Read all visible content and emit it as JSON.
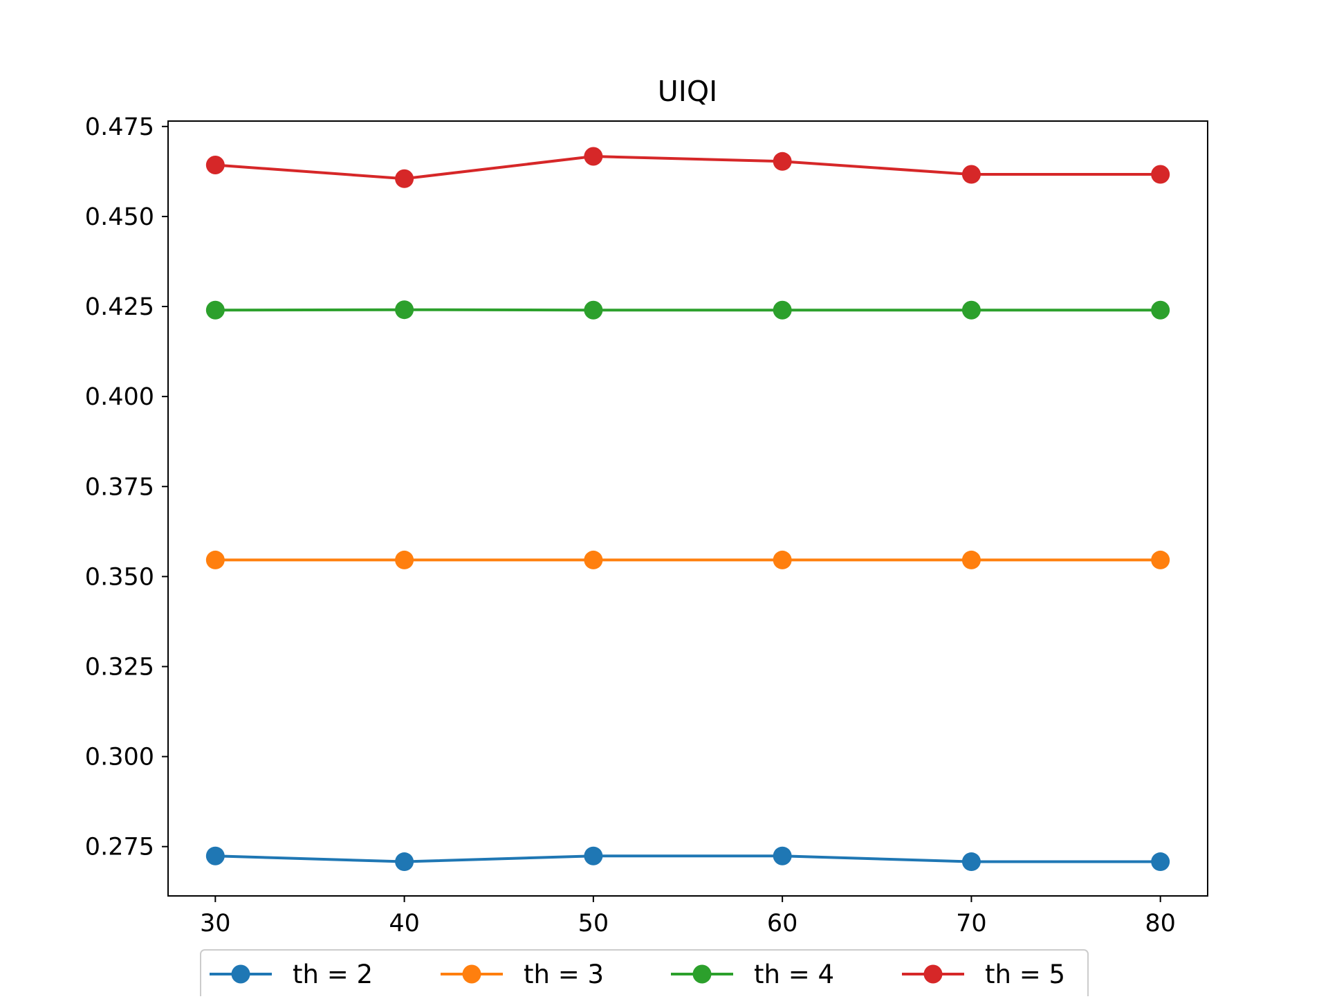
{
  "chart_data": {
    "type": "line",
    "title": "UIQI",
    "xlabel": "",
    "ylabel": "",
    "x": [
      30,
      40,
      50,
      60,
      70,
      80
    ],
    "xlim": [
      27.5,
      82.5
    ],
    "ylim": [
      0.2613,
      0.4765
    ],
    "x_ticks": [
      "30",
      "40",
      "50",
      "60",
      "70",
      "80"
    ],
    "y_ticks": [
      "0.275",
      "0.300",
      "0.325",
      "0.350",
      "0.375",
      "0.400",
      "0.425",
      "0.450",
      "0.475"
    ],
    "grid": false,
    "legend_position": "bottom-center, below plot",
    "series": [
      {
        "name": "th = 2",
        "color": "#1f77b4",
        "values": [
          0.2724,
          0.2708,
          0.2724,
          0.2724,
          0.2708,
          0.2708
        ]
      },
      {
        "name": "th = 3",
        "color": "#ff7f0e",
        "values": [
          0.3546,
          0.3546,
          0.3546,
          0.3546,
          0.3546,
          0.3546
        ]
      },
      {
        "name": "th = 4",
        "color": "#2ca02c",
        "values": [
          0.424,
          0.4241,
          0.424,
          0.424,
          0.424,
          0.424
        ]
      },
      {
        "name": "th = 5",
        "color": "#d62728",
        "values": [
          0.4643,
          0.4605,
          0.4667,
          0.4653,
          0.4617,
          0.4617
        ]
      }
    ]
  }
}
